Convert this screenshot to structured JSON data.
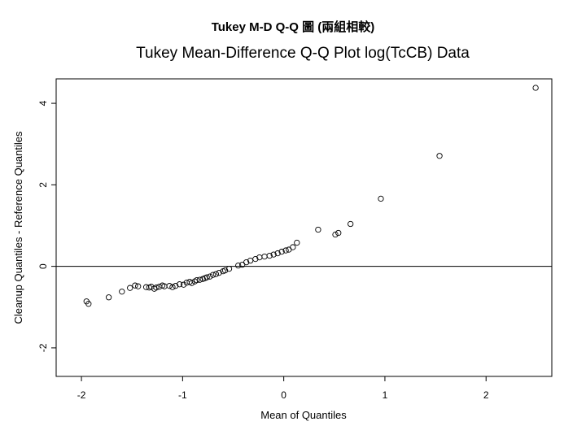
{
  "header": {
    "title": "Tukey M-D Q-Q 圖 (兩組相較)"
  },
  "chart_data": {
    "type": "scatter",
    "title": "Tukey Mean-Difference Q-Q Plot log(TcCB) Data",
    "xlabel": "Mean of Quantiles",
    "ylabel": "Cleanup Quantiles - Reference Quantiles",
    "xlim": [
      -2.25,
      2.65
    ],
    "ylim": [
      -2.7,
      4.6
    ],
    "xticks": [
      -2,
      -1,
      0,
      1,
      2
    ],
    "yticks": [
      -2,
      0,
      2,
      4
    ],
    "reference_line_y": 0,
    "grid": false,
    "marker": "open-circle",
    "x": [
      -1.95,
      -1.93,
      -1.73,
      -1.6,
      -1.52,
      -1.47,
      -1.44,
      -1.36,
      -1.33,
      -1.31,
      -1.28,
      -1.26,
      -1.23,
      -1.2,
      -1.18,
      -1.13,
      -1.1,
      -1.07,
      -1.03,
      -0.99,
      -0.96,
      -0.93,
      -0.91,
      -0.88,
      -0.86,
      -0.83,
      -0.8,
      -0.78,
      -0.76,
      -0.73,
      -0.7,
      -0.67,
      -0.64,
      -0.6,
      -0.58,
      -0.54,
      -0.45,
      -0.41,
      -0.37,
      -0.33,
      -0.28,
      -0.24,
      -0.19,
      -0.14,
      -0.1,
      -0.06,
      -0.02,
      0.02,
      0.05,
      0.09,
      0.13,
      0.34,
      0.51,
      0.54,
      0.66,
      0.96,
      1.54,
      2.49
    ],
    "y": [
      -0.86,
      -0.92,
      -0.76,
      -0.62,
      -0.53,
      -0.47,
      -0.49,
      -0.51,
      -0.52,
      -0.5,
      -0.55,
      -0.52,
      -0.5,
      -0.47,
      -0.49,
      -0.48,
      -0.51,
      -0.48,
      -0.44,
      -0.45,
      -0.4,
      -0.38,
      -0.41,
      -0.37,
      -0.34,
      -0.33,
      -0.31,
      -0.29,
      -0.27,
      -0.25,
      -0.21,
      -0.19,
      -0.16,
      -0.12,
      -0.1,
      -0.06,
      0.02,
      0.04,
      0.1,
      0.14,
      0.18,
      0.22,
      0.24,
      0.26,
      0.29,
      0.32,
      0.36,
      0.39,
      0.41,
      0.47,
      0.58,
      0.9,
      0.78,
      0.82,
      1.04,
      1.66,
      2.71,
      4.38
    ]
  }
}
